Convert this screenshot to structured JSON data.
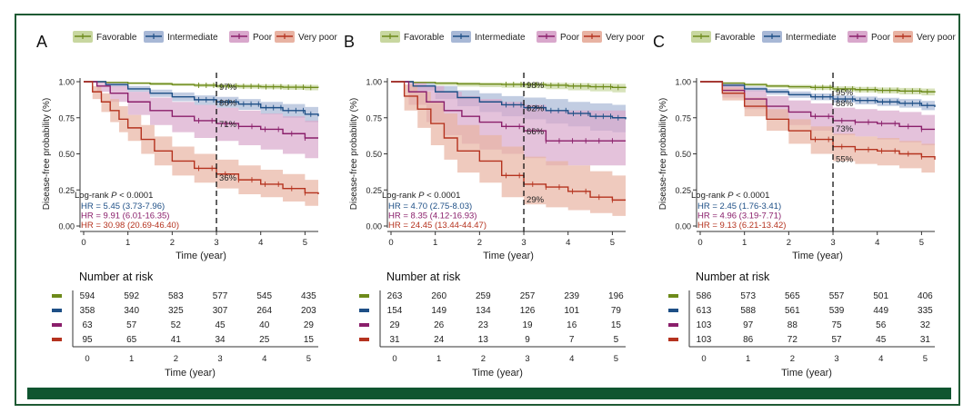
{
  "legend": [
    {
      "label": "Favorable",
      "color": "#6d8a1a",
      "fill": "#c8d7a0"
    },
    {
      "label": "Intermediate",
      "color": "#1e4f86",
      "fill": "#a8b8d6"
    },
    {
      "label": "Poor",
      "color": "#8a1f6b",
      "fill": "#d9a8cc"
    },
    {
      "label": "Very poor",
      "color": "#b5331f",
      "fill": "#e8b3a3"
    }
  ],
  "common": {
    "ylabel": "Disease-free probability (%)",
    "xlabel": "Time (year)",
    "risk_title": "Number at risk",
    "risk_xlabel": "Time (year)",
    "logrank_text": "Log-rank ",
    "logrank_p": "P",
    "logrank_value": " < 0.0001",
    "y_ticks": [
      "0.00",
      "0.25",
      "0.50",
      "0.75",
      "1.00"
    ],
    "x_ticks": [
      "0",
      "1",
      "2",
      "3",
      "4",
      "5"
    ]
  },
  "chart_data": [
    {
      "panel": "A",
      "type": "line",
      "xlim": [
        0,
        5.3
      ],
      "ylim": [
        0,
        1
      ],
      "milestone_x": 3,
      "hr": [
        "HR = 5.45 (3.73-7.96)",
        "HR = 9.91 (6.01-16.35)",
        "HR = 30.98 (20.69-46.40)"
      ],
      "series": [
        {
          "name": "Favorable",
          "x": [
            0,
            0.5,
            1,
            1.5,
            2,
            2.5,
            3,
            3.5,
            4,
            4.5,
            5,
            5.3
          ],
          "y": [
            1,
            0.995,
            0.99,
            0.985,
            0.98,
            0.975,
            0.97,
            0.968,
            0.965,
            0.962,
            0.96,
            0.958
          ],
          "lo": [
            1,
            0.99,
            0.982,
            0.975,
            0.97,
            0.963,
            0.955,
            0.952,
            0.948,
            0.944,
            0.94,
            0.937
          ],
          "hi": [
            1,
            1,
            0.997,
            0.995,
            0.99,
            0.987,
            0.985,
            0.983,
            0.981,
            0.979,
            0.978,
            0.977
          ],
          "label": "97%",
          "label_y": 0.97
        },
        {
          "name": "Intermediate",
          "x": [
            0,
            0.5,
            1,
            1.5,
            2,
            2.5,
            3,
            3.5,
            4,
            4.5,
            5,
            5.3
          ],
          "y": [
            1,
            0.98,
            0.95,
            0.92,
            0.895,
            0.875,
            0.86,
            0.845,
            0.82,
            0.8,
            0.775,
            0.76
          ],
          "lo": [
            1,
            0.965,
            0.93,
            0.895,
            0.865,
            0.84,
            0.82,
            0.805,
            0.775,
            0.75,
            0.72,
            0.7
          ],
          "hi": [
            1,
            0.995,
            0.97,
            0.945,
            0.925,
            0.905,
            0.895,
            0.88,
            0.86,
            0.845,
            0.825,
            0.815
          ],
          "label": "86%",
          "label_y": 0.86
        },
        {
          "name": "Poor",
          "x": [
            0,
            0.3,
            0.6,
            1,
            1.5,
            2,
            2.5,
            3,
            3.5,
            4,
            4.5,
            5,
            5.3
          ],
          "y": [
            1,
            0.97,
            0.92,
            0.86,
            0.8,
            0.76,
            0.73,
            0.71,
            0.69,
            0.67,
            0.64,
            0.61,
            0.61
          ],
          "lo": [
            1,
            0.93,
            0.86,
            0.77,
            0.7,
            0.65,
            0.61,
            0.59,
            0.56,
            0.53,
            0.5,
            0.47,
            0.47
          ],
          "hi": [
            1,
            1,
            0.97,
            0.93,
            0.89,
            0.86,
            0.84,
            0.82,
            0.8,
            0.78,
            0.76,
            0.73,
            0.73
          ],
          "label": "71%",
          "label_y": 0.71
        },
        {
          "name": "Very poor",
          "x": [
            0,
            0.2,
            0.4,
            0.6,
            0.8,
            1,
            1.3,
            1.6,
            2,
            2.5,
            3,
            3.5,
            4,
            4.5,
            5,
            5.3
          ],
          "y": [
            1,
            0.93,
            0.86,
            0.8,
            0.74,
            0.68,
            0.6,
            0.52,
            0.45,
            0.4,
            0.36,
            0.32,
            0.29,
            0.26,
            0.23,
            0.22
          ],
          "lo": [
            1,
            0.88,
            0.79,
            0.72,
            0.65,
            0.59,
            0.5,
            0.42,
            0.35,
            0.3,
            0.26,
            0.22,
            0.2,
            0.17,
            0.14,
            0.13
          ],
          "hi": [
            1,
            0.97,
            0.92,
            0.88,
            0.83,
            0.77,
            0.7,
            0.62,
            0.55,
            0.5,
            0.46,
            0.42,
            0.39,
            0.36,
            0.32,
            0.31
          ],
          "label": "36%",
          "label_y": 0.34
        }
      ],
      "risk": [
        [
          "594",
          "592",
          "583",
          "577",
          "545",
          "435"
        ],
        [
          "358",
          "340",
          "325",
          "307",
          "264",
          "203"
        ],
        [
          "63",
          "57",
          "52",
          "45",
          "40",
          "29"
        ],
        [
          "95",
          "65",
          "41",
          "34",
          "25",
          "15"
        ]
      ]
    },
    {
      "panel": "B",
      "type": "line",
      "xlim": [
        0,
        5.3
      ],
      "ylim": [
        0,
        1
      ],
      "milestone_x": 3,
      "hr": [
        "HR = 4.70 (2.75-8.03)",
        "HR = 8.35 (4.12-16.93)",
        "HR = 24.45 (13.44-44.47)"
      ],
      "series": [
        {
          "name": "Favorable",
          "x": [
            0,
            0.5,
            1,
            1.5,
            2,
            2.5,
            3,
            3.5,
            4,
            4.5,
            5,
            5.3
          ],
          "y": [
            1,
            0.995,
            0.99,
            0.985,
            0.983,
            0.981,
            0.98,
            0.975,
            0.97,
            0.965,
            0.96,
            0.955
          ],
          "lo": [
            1,
            0.985,
            0.975,
            0.966,
            0.962,
            0.958,
            0.955,
            0.948,
            0.94,
            0.933,
            0.926,
            0.92
          ],
          "hi": [
            1,
            1,
            0.998,
            0.996,
            0.995,
            0.994,
            0.994,
            0.992,
            0.99,
            0.988,
            0.985,
            0.983
          ],
          "label": "98%",
          "label_y": 0.98
        },
        {
          "name": "Intermediate",
          "x": [
            0,
            0.5,
            1,
            1.5,
            2,
            2.5,
            3,
            3.5,
            4,
            4.5,
            5,
            5.3
          ],
          "y": [
            1,
            0.97,
            0.93,
            0.89,
            0.86,
            0.84,
            0.82,
            0.8,
            0.78,
            0.76,
            0.75,
            0.74
          ],
          "lo": [
            1,
            0.94,
            0.88,
            0.83,
            0.79,
            0.76,
            0.74,
            0.71,
            0.69,
            0.66,
            0.65,
            0.64
          ],
          "hi": [
            1,
            0.995,
            0.97,
            0.94,
            0.92,
            0.9,
            0.89,
            0.88,
            0.86,
            0.85,
            0.84,
            0.84
          ],
          "label": "82%",
          "label_y": 0.82
        },
        {
          "name": "Poor",
          "x": [
            0,
            0.4,
            0.8,
            1.2,
            1.6,
            2,
            2.5,
            3,
            3.5,
            4,
            4.5,
            5,
            5.3
          ],
          "y": [
            1,
            0.93,
            0.86,
            0.8,
            0.76,
            0.72,
            0.69,
            0.66,
            0.59,
            0.59,
            0.59,
            0.59,
            0.59
          ],
          "lo": [
            1,
            0.84,
            0.72,
            0.63,
            0.57,
            0.53,
            0.5,
            0.47,
            0.42,
            0.42,
            0.42,
            0.42,
            0.42
          ],
          "hi": [
            1,
            1,
            0.97,
            0.93,
            0.9,
            0.88,
            0.86,
            0.84,
            0.8,
            0.8,
            0.8,
            0.8,
            0.8
          ],
          "label": "66%",
          "label_y": 0.66
        },
        {
          "name": "Very poor",
          "x": [
            0,
            0.3,
            0.6,
            0.9,
            1.2,
            1.5,
            2,
            2.5,
            3,
            3.5,
            4,
            4.5,
            5,
            5.3
          ],
          "y": [
            1,
            0.9,
            0.81,
            0.71,
            0.61,
            0.52,
            0.45,
            0.35,
            0.29,
            0.27,
            0.24,
            0.2,
            0.18,
            0.18
          ],
          "lo": [
            1,
            0.8,
            0.68,
            0.56,
            0.46,
            0.37,
            0.3,
            0.2,
            0.15,
            0.13,
            0.11,
            0.09,
            0.07,
            0.07
          ],
          "hi": [
            1,
            0.98,
            0.93,
            0.86,
            0.78,
            0.7,
            0.63,
            0.55,
            0.48,
            0.45,
            0.42,
            0.38,
            0.35,
            0.35
          ],
          "label": "29%",
          "label_y": 0.19
        }
      ],
      "risk": [
        [
          "263",
          "260",
          "259",
          "257",
          "239",
          "196"
        ],
        [
          "154",
          "149",
          "134",
          "126",
          "101",
          "79"
        ],
        [
          "29",
          "26",
          "23",
          "19",
          "16",
          "15"
        ],
        [
          "31",
          "24",
          "13",
          "9",
          "7",
          "5"
        ]
      ]
    },
    {
      "panel": "C",
      "type": "line",
      "xlim": [
        0,
        5.3
      ],
      "ylim": [
        0,
        1
      ],
      "milestone_x": 3,
      "hr": [
        "HR = 2.45 (1.76-3.41)",
        "HR = 4.96 (3.19-7.71)",
        "HR = 9.13 (6.21-13.42)"
      ],
      "series": [
        {
          "name": "Favorable",
          "x": [
            0,
            0.5,
            1,
            1.5,
            2,
            2.5,
            3,
            3.5,
            4,
            4.5,
            5,
            5.3
          ],
          "y": [
            1,
            0.99,
            0.98,
            0.97,
            0.965,
            0.96,
            0.95,
            0.945,
            0.94,
            0.935,
            0.93,
            0.925
          ],
          "lo": [
            1,
            0.983,
            0.97,
            0.958,
            0.95,
            0.943,
            0.932,
            0.925,
            0.918,
            0.912,
            0.905,
            0.898
          ],
          "hi": [
            1,
            0.997,
            0.99,
            0.982,
            0.978,
            0.975,
            0.968,
            0.964,
            0.96,
            0.957,
            0.953,
            0.95
          ],
          "label": "95%",
          "label_y": 0.93
        },
        {
          "name": "Intermediate",
          "x": [
            0,
            0.5,
            1,
            1.5,
            2,
            2.5,
            3,
            3.5,
            4,
            4.5,
            5,
            5.3
          ],
          "y": [
            1,
            0.975,
            0.95,
            0.93,
            0.91,
            0.895,
            0.88,
            0.87,
            0.86,
            0.85,
            0.835,
            0.825
          ],
          "lo": [
            1,
            0.962,
            0.933,
            0.91,
            0.888,
            0.872,
            0.855,
            0.843,
            0.832,
            0.82,
            0.803,
            0.792
          ],
          "hi": [
            1,
            0.988,
            0.967,
            0.95,
            0.932,
            0.918,
            0.905,
            0.897,
            0.888,
            0.88,
            0.867,
            0.858
          ],
          "label": "88%",
          "label_y": 0.855
        },
        {
          "name": "Poor",
          "x": [
            0,
            0.5,
            1,
            1.5,
            2,
            2.5,
            3,
            3.5,
            4,
            4.5,
            5,
            5.3
          ],
          "y": [
            1,
            0.94,
            0.88,
            0.83,
            0.79,
            0.76,
            0.73,
            0.72,
            0.71,
            0.69,
            0.67,
            0.67
          ],
          "lo": [
            1,
            0.89,
            0.81,
            0.75,
            0.7,
            0.66,
            0.63,
            0.62,
            0.6,
            0.58,
            0.56,
            0.56
          ],
          "hi": [
            1,
            0.98,
            0.94,
            0.9,
            0.87,
            0.85,
            0.82,
            0.81,
            0.8,
            0.79,
            0.77,
            0.77
          ],
          "label": "73%",
          "label_y": 0.68
        },
        {
          "name": "Very poor",
          "x": [
            0,
            0.5,
            1,
            1.5,
            2,
            2.5,
            3,
            3.5,
            4,
            4.5,
            5,
            5.3
          ],
          "y": [
            1,
            0.92,
            0.83,
            0.74,
            0.66,
            0.6,
            0.55,
            0.53,
            0.52,
            0.5,
            0.48,
            0.46
          ],
          "lo": [
            1,
            0.87,
            0.76,
            0.66,
            0.57,
            0.5,
            0.45,
            0.43,
            0.42,
            0.4,
            0.37,
            0.35
          ],
          "hi": [
            1,
            0.96,
            0.89,
            0.81,
            0.74,
            0.69,
            0.64,
            0.62,
            0.61,
            0.59,
            0.57,
            0.56
          ],
          "label": "55%",
          "label_y": 0.47
        }
      ],
      "risk": [
        [
          "586",
          "573",
          "565",
          "557",
          "501",
          "406"
        ],
        [
          "613",
          "588",
          "561",
          "539",
          "449",
          "335"
        ],
        [
          "103",
          "97",
          "88",
          "75",
          "56",
          "32"
        ],
        [
          "103",
          "86",
          "72",
          "57",
          "45",
          "31"
        ]
      ]
    }
  ]
}
